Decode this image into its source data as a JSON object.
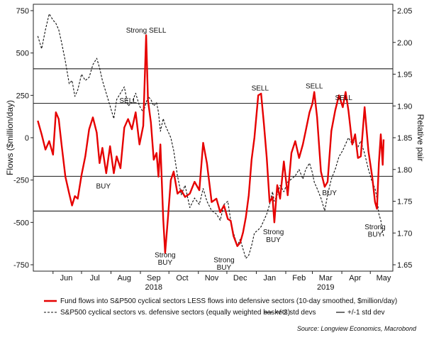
{
  "chart_data": {
    "type": "line",
    "left_axis": {
      "label": "Flows ($million/day)",
      "ylim": [
        -750,
        750
      ],
      "ticks": [
        750,
        500,
        250,
        0,
        -250,
        -500,
        -750
      ],
      "tick_labels": [
        "750",
        "500",
        "250",
        "0",
        "-250",
        "-500",
        "-750"
      ]
    },
    "right_axis": {
      "label": "Relative pair",
      "ylim": [
        1.65,
        2.05
      ],
      "ticks": [
        2.05,
        2.0,
        1.95,
        1.9,
        1.85,
        1.8,
        1.75,
        1.7,
        1.65
      ],
      "tick_labels": [
        "2.05",
        "2.00",
        "1.95",
        "1.90",
        "1.85",
        "1.80",
        "1.75",
        "1.70",
        "1.65"
      ]
    },
    "x_axis": {
      "range": [
        "2018-05-15",
        "2019-05-15"
      ],
      "months": [
        {
          "label": "Jun",
          "date": "2018-06-15"
        },
        {
          "label": "Jul",
          "date": "2018-07-15"
        },
        {
          "label": "Aug",
          "date": "2018-08-15"
        },
        {
          "label": "Sep",
          "date": "2018-09-15"
        },
        {
          "label": "Oct",
          "date": "2018-10-15"
        },
        {
          "label": "Nov",
          "date": "2018-11-15"
        },
        {
          "label": "Dec",
          "date": "2018-12-15"
        },
        {
          "label": "Jan",
          "date": "2019-01-15"
        },
        {
          "label": "Feb",
          "date": "2019-02-15"
        },
        {
          "label": "Mar",
          "date": "2019-03-15"
        },
        {
          "label": "Apr",
          "date": "2019-04-15"
        },
        {
          "label": "May",
          "date": "2019-05-15"
        }
      ],
      "years": [
        {
          "label": "2018",
          "date": "2018-09-15"
        },
        {
          "label": "2019",
          "date": "2019-03-15"
        }
      ]
    },
    "reference_lines": [
      {
        "value": 407,
        "style": "+/-2 std devs"
      },
      {
        "value": 203,
        "style": "+/-1 std dev"
      },
      {
        "value": -228,
        "style": "+/-1 std dev"
      },
      {
        "value": -433,
        "style": "+/-2 std devs"
      }
    ],
    "series": [
      {
        "name": "Fund flows into S&P500 cyclical sectors LESS flows into defensive sectors (10-day smoothed, $million/day)",
        "axis": "left",
        "color": "#e60000",
        "style": "solid",
        "points": [
          [
            "2018-05-16",
            100
          ],
          [
            "2018-05-20",
            20
          ],
          [
            "2018-05-24",
            -70
          ],
          [
            "2018-05-28",
            -20
          ],
          [
            "2018-06-01",
            -100
          ],
          [
            "2018-06-04",
            150
          ],
          [
            "2018-06-07",
            110
          ],
          [
            "2018-06-10",
            -40
          ],
          [
            "2018-06-14",
            -230
          ],
          [
            "2018-06-18",
            -330
          ],
          [
            "2018-06-21",
            -400
          ],
          [
            "2018-06-24",
            -345
          ],
          [
            "2018-06-27",
            -360
          ],
          [
            "2018-07-01",
            -220
          ],
          [
            "2018-07-05",
            -110
          ],
          [
            "2018-07-09",
            50
          ],
          [
            "2018-07-13",
            120
          ],
          [
            "2018-07-17",
            30
          ],
          [
            "2018-07-20",
            -150
          ],
          [
            "2018-07-23",
            -60
          ],
          [
            "2018-07-27",
            -210
          ],
          [
            "2018-07-31",
            -50
          ],
          [
            "2018-08-04",
            -210
          ],
          [
            "2018-08-07",
            -110
          ],
          [
            "2018-08-11",
            -180
          ],
          [
            "2018-08-15",
            60
          ],
          [
            "2018-08-19",
            110
          ],
          [
            "2018-08-23",
            50
          ],
          [
            "2018-08-27",
            150
          ],
          [
            "2018-08-31",
            -40
          ],
          [
            "2018-09-04",
            70
          ],
          [
            "2018-09-07",
            605
          ],
          [
            "2018-09-09",
            220
          ],
          [
            "2018-09-12",
            90
          ],
          [
            "2018-09-15",
            -130
          ],
          [
            "2018-09-18",
            -90
          ],
          [
            "2018-09-20",
            -230
          ],
          [
            "2018-09-22",
            -40
          ],
          [
            "2018-09-25",
            -480
          ],
          [
            "2018-09-27",
            -680
          ],
          [
            "2018-09-30",
            -470
          ],
          [
            "2018-10-03",
            -250
          ],
          [
            "2018-10-06",
            -200
          ],
          [
            "2018-10-10",
            -330
          ],
          [
            "2018-10-14",
            -310
          ],
          [
            "2018-10-18",
            -350
          ],
          [
            "2018-10-23",
            -330
          ],
          [
            "2018-10-28",
            -260
          ],
          [
            "2018-11-02",
            -310
          ],
          [
            "2018-11-06",
            -30
          ],
          [
            "2018-11-10",
            -150
          ],
          [
            "2018-11-15",
            -380
          ],
          [
            "2018-11-20",
            -360
          ],
          [
            "2018-11-24",
            -440
          ],
          [
            "2018-11-28",
            -400
          ],
          [
            "2018-12-02",
            -480
          ],
          [
            "2018-12-05",
            -490
          ],
          [
            "2018-12-08",
            -580
          ],
          [
            "2018-12-12",
            -640
          ],
          [
            "2018-12-15",
            -620
          ],
          [
            "2018-12-18",
            -560
          ],
          [
            "2018-12-21",
            -470
          ],
          [
            "2018-12-24",
            -340
          ],
          [
            "2018-12-27",
            -130
          ],
          [
            "2018-12-30",
            0
          ],
          [
            "2019-01-03",
            250
          ],
          [
            "2019-01-06",
            260
          ],
          [
            "2019-01-09",
            80
          ],
          [
            "2019-01-12",
            -120
          ],
          [
            "2019-01-15",
            -380
          ],
          [
            "2019-01-18",
            -350
          ],
          [
            "2019-01-20",
            -500
          ],
          [
            "2019-01-23",
            -280
          ],
          [
            "2019-01-26",
            -360
          ],
          [
            "2019-01-30",
            -140
          ],
          [
            "2019-02-03",
            -340
          ],
          [
            "2019-02-07",
            -90
          ],
          [
            "2019-02-11",
            -20
          ],
          [
            "2019-02-15",
            -120
          ],
          [
            "2019-02-19",
            -40
          ],
          [
            "2019-02-22",
            40
          ],
          [
            "2019-02-26",
            150
          ],
          [
            "2019-03-01",
            200
          ],
          [
            "2019-03-03",
            270
          ],
          [
            "2019-03-06",
            120
          ],
          [
            "2019-03-10",
            -200
          ],
          [
            "2019-03-14",
            -290
          ],
          [
            "2019-03-17",
            -260
          ],
          [
            "2019-03-21",
            40
          ],
          [
            "2019-03-25",
            160
          ],
          [
            "2019-03-29",
            250
          ],
          [
            "2019-04-02",
            180
          ],
          [
            "2019-04-05",
            270
          ],
          [
            "2019-04-08",
            160
          ],
          [
            "2019-04-12",
            -40
          ],
          [
            "2019-04-15",
            20
          ],
          [
            "2019-04-18",
            -120
          ],
          [
            "2019-04-21",
            -110
          ],
          [
            "2019-04-25",
            180
          ],
          [
            "2019-04-29",
            -80
          ],
          [
            "2019-05-03",
            -230
          ],
          [
            "2019-05-06",
            -380
          ],
          [
            "2019-05-08",
            -420
          ],
          [
            "2019-05-10",
            -150
          ],
          [
            "2019-05-12",
            20
          ],
          [
            "2019-05-14",
            -160
          ],
          [
            "2019-05-15",
            -10
          ]
        ]
      },
      {
        "name": "S&P500 cyclical sectors vs. defensive sectors (equally weighted baskets)",
        "axis": "right",
        "color": "#111111",
        "style": "dashed",
        "points": [
          [
            "2018-05-16",
            2.01
          ],
          [
            "2018-05-20",
            1.99
          ],
          [
            "2018-05-24",
            2.02
          ],
          [
            "2018-05-28",
            2.045
          ],
          [
            "2018-06-01",
            2.035
          ],
          [
            "2018-06-04",
            2.03
          ],
          [
            "2018-06-07",
            2.02
          ],
          [
            "2018-06-10",
            2.0
          ],
          [
            "2018-06-14",
            1.97
          ],
          [
            "2018-06-18",
            1.935
          ],
          [
            "2018-06-21",
            1.94
          ],
          [
            "2018-06-24",
            1.915
          ],
          [
            "2018-06-27",
            1.925
          ],
          [
            "2018-07-01",
            1.95
          ],
          [
            "2018-07-05",
            1.94
          ],
          [
            "2018-07-09",
            1.945
          ],
          [
            "2018-07-13",
            1.965
          ],
          [
            "2018-07-17",
            1.975
          ],
          [
            "2018-07-20",
            1.96
          ],
          [
            "2018-07-23",
            1.94
          ],
          [
            "2018-07-27",
            1.92
          ],
          [
            "2018-07-31",
            1.9
          ],
          [
            "2018-08-04",
            1.88
          ],
          [
            "2018-08-07",
            1.91
          ],
          [
            "2018-08-11",
            1.92
          ],
          [
            "2018-08-15",
            1.93
          ],
          [
            "2018-08-19",
            1.9
          ],
          [
            "2018-08-23",
            1.905
          ],
          [
            "2018-08-27",
            1.92
          ],
          [
            "2018-08-31",
            1.9
          ],
          [
            "2018-09-04",
            1.89
          ],
          [
            "2018-09-07",
            1.905
          ],
          [
            "2018-09-09",
            1.915
          ],
          [
            "2018-09-12",
            1.91
          ],
          [
            "2018-09-15",
            1.9
          ],
          [
            "2018-09-18",
            1.905
          ],
          [
            "2018-09-20",
            1.89
          ],
          [
            "2018-09-22",
            1.86
          ],
          [
            "2018-09-25",
            1.88
          ],
          [
            "2018-09-27",
            1.87
          ],
          [
            "2018-09-30",
            1.86
          ],
          [
            "2018-10-03",
            1.85
          ],
          [
            "2018-10-06",
            1.83
          ],
          [
            "2018-10-10",
            1.79
          ],
          [
            "2018-10-14",
            1.76
          ],
          [
            "2018-10-18",
            1.775
          ],
          [
            "2018-10-23",
            1.74
          ],
          [
            "2018-10-28",
            1.755
          ],
          [
            "2018-11-02",
            1.745
          ],
          [
            "2018-11-06",
            1.77
          ],
          [
            "2018-11-10",
            1.75
          ],
          [
            "2018-11-15",
            1.735
          ],
          [
            "2018-11-20",
            1.73
          ],
          [
            "2018-11-24",
            1.72
          ],
          [
            "2018-11-28",
            1.745
          ],
          [
            "2018-12-02",
            1.75
          ],
          [
            "2018-12-05",
            1.72
          ],
          [
            "2018-12-08",
            1.7
          ],
          [
            "2018-12-12",
            1.68
          ],
          [
            "2018-12-15",
            1.69
          ],
          [
            "2018-12-18",
            1.675
          ],
          [
            "2018-12-21",
            1.66
          ],
          [
            "2018-12-24",
            1.665
          ],
          [
            "2018-12-27",
            1.68
          ],
          [
            "2018-12-30",
            1.7
          ],
          [
            "2019-01-03",
            1.705
          ],
          [
            "2019-01-06",
            1.71
          ],
          [
            "2019-01-09",
            1.72
          ],
          [
            "2019-01-12",
            1.73
          ],
          [
            "2019-01-15",
            1.745
          ],
          [
            "2019-01-18",
            1.765
          ],
          [
            "2019-01-20",
            1.75
          ],
          [
            "2019-01-23",
            1.76
          ],
          [
            "2019-01-26",
            1.775
          ],
          [
            "2019-01-30",
            1.765
          ],
          [
            "2019-02-03",
            1.78
          ],
          [
            "2019-02-07",
            1.785
          ],
          [
            "2019-02-11",
            1.79
          ],
          [
            "2019-02-15",
            1.8
          ],
          [
            "2019-02-19",
            1.785
          ],
          [
            "2019-02-22",
            1.8
          ],
          [
            "2019-02-26",
            1.81
          ],
          [
            "2019-03-01",
            1.795
          ],
          [
            "2019-03-03",
            1.78
          ],
          [
            "2019-03-06",
            1.77
          ],
          [
            "2019-03-10",
            1.755
          ],
          [
            "2019-03-14",
            1.735
          ],
          [
            "2019-03-17",
            1.76
          ],
          [
            "2019-03-21",
            1.785
          ],
          [
            "2019-03-25",
            1.8
          ],
          [
            "2019-03-29",
            1.82
          ],
          [
            "2019-04-02",
            1.83
          ],
          [
            "2019-04-05",
            1.84
          ],
          [
            "2019-04-08",
            1.85
          ],
          [
            "2019-04-12",
            1.84
          ],
          [
            "2019-04-15",
            1.845
          ],
          [
            "2019-04-18",
            1.835
          ],
          [
            "2019-04-21",
            1.845
          ],
          [
            "2019-04-25",
            1.825
          ],
          [
            "2019-04-29",
            1.8
          ],
          [
            "2019-05-03",
            1.78
          ],
          [
            "2019-05-06",
            1.77
          ],
          [
            "2019-05-08",
            1.755
          ],
          [
            "2019-05-10",
            1.73
          ],
          [
            "2019-05-12",
            1.72
          ],
          [
            "2019-05-14",
            1.7
          ],
          [
            "2019-05-15",
            1.695
          ]
        ]
      }
    ],
    "annotations": [
      {
        "text": "Strong SELL",
        "date": "2018-09-07",
        "value": 620
      },
      {
        "text": "SELL",
        "date": "2018-08-19",
        "value": 205
      },
      {
        "text": "BUY",
        "date": "2018-07-24",
        "value": -300
      },
      {
        "text": "Strong",
        "date": "2018-09-27",
        "value": -705
      },
      {
        "text": "BUY",
        "date": "2018-09-27",
        "value": -750
      },
      {
        "text": "Strong",
        "date": "2018-11-28",
        "value": -735
      },
      {
        "text": "BUY",
        "date": "2018-11-28",
        "value": -780
      },
      {
        "text": "SELL",
        "date": "2019-01-05",
        "value": 278
      },
      {
        "text": "Strong",
        "date": "2019-01-19",
        "value": -570
      },
      {
        "text": "BUY",
        "date": "2019-01-19",
        "value": -615
      },
      {
        "text": "SELL",
        "date": "2019-03-03",
        "value": 292
      },
      {
        "text": "BUY",
        "date": "2019-03-19",
        "value": -340
      },
      {
        "text": "SELL",
        "date": "2019-04-03",
        "value": 222
      },
      {
        "text": "Strong",
        "date": "2019-05-06",
        "value": -540
      },
      {
        "text": "BUY",
        "date": "2019-05-06",
        "value": -585
      }
    ],
    "legend": {
      "placement": "bottom",
      "items": [
        {
          "label": "Fund flows into S&P500 cyclical sectors LESS flows into defensive sectors (10-day smoothed, $million/day)",
          "color": "#e60000",
          "style": "solid"
        },
        {
          "label": "S&P500 cyclical sectors vs. defensive sectors (equally weighted baskets)",
          "color": "#111111",
          "style": "dashed"
        },
        {
          "label": "+/-2 std devs",
          "color": "#111111",
          "style": "solid"
        },
        {
          "label": "+/-1 std dev",
          "color": "#111111",
          "style": "solid"
        }
      ]
    },
    "source": "Source: Longview Economics, Macrobond",
    "grid": false
  }
}
